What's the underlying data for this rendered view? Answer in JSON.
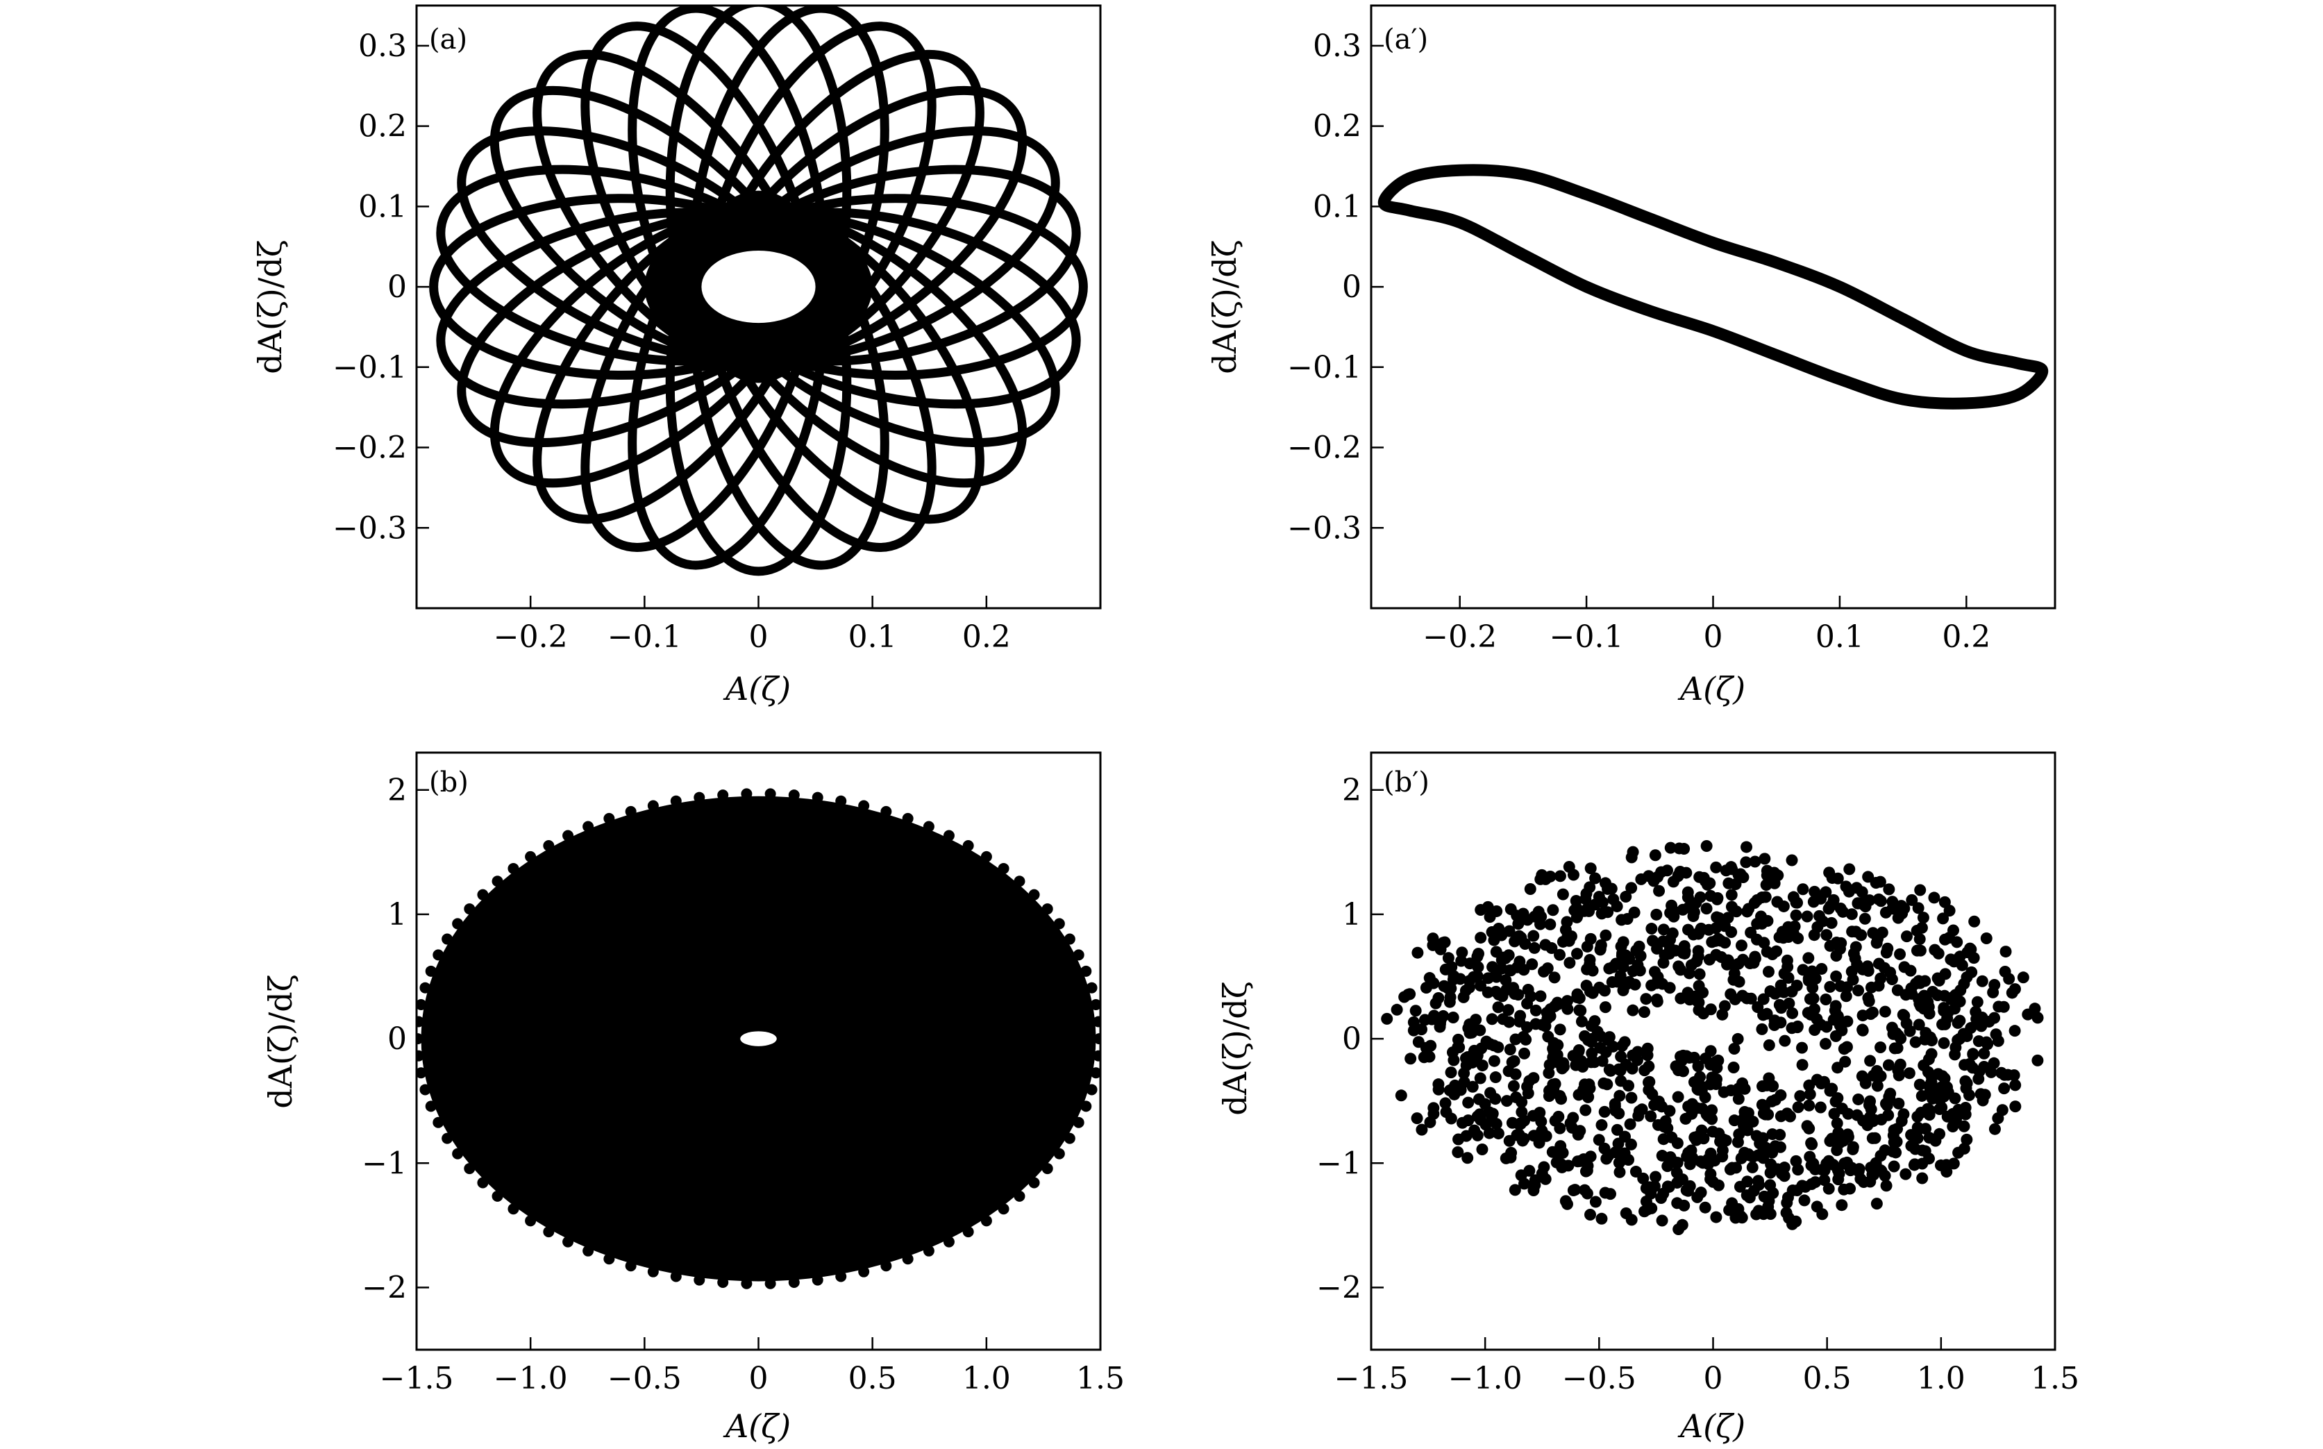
{
  "figure": {
    "background": "#ffffff",
    "mark_color": "#000000"
  },
  "chart_data": [
    {
      "panel": "(a)",
      "type": "scatter",
      "xlabel": "A(ζ)",
      "ylabel": "dA(ζ)/dζ",
      "xlim": [
        -0.3,
        0.3
      ],
      "ylim": [
        -0.4,
        0.35
      ],
      "xticks": [
        -0.2,
        -0.1,
        0,
        0.1,
        0.2
      ],
      "xtick_labels": [
        "−0.2",
        "−0.1",
        "0",
        "0.1",
        "0.2"
      ],
      "yticks": [
        -0.3,
        -0.2,
        -0.1,
        0,
        0.1,
        0.2,
        0.3
      ],
      "ytick_labels": [
        "−0.3",
        "−0.2",
        "−0.1",
        "0",
        "0.1",
        "0.2",
        "0.3"
      ],
      "pattern": {
        "kind": "rosette",
        "count": 28,
        "semi_major": 0.165,
        "semi_minor": 0.11,
        "center_radius": 0.12,
        "hole": [
          0.05,
          0.045
        ],
        "outer": [
          0.285,
          0.3
        ]
      },
      "series": []
    },
    {
      "panel": "(a′)",
      "type": "scatter",
      "xlabel": "A(ζ)",
      "ylabel": "dA(ζ)/dζ",
      "xlim": [
        -0.27,
        0.27
      ],
      "ylim": [
        -0.4,
        0.35
      ],
      "xticks": [
        -0.2,
        -0.1,
        0,
        0.1,
        0.2
      ],
      "xtick_labels": [
        "−0.2",
        "−0.1",
        "0",
        "0.1",
        "0.2"
      ],
      "yticks": [
        -0.3,
        -0.2,
        -0.1,
        0,
        0.1,
        0.2,
        0.3
      ],
      "ytick_labels": [
        "−0.3",
        "−0.2",
        "−0.1",
        "0",
        "0.1",
        "0.2",
        "0.3"
      ],
      "series": [
        {
          "kind": "closed-loop",
          "x": [
            -0.26,
            -0.24,
            -0.2,
            -0.15,
            -0.1,
            -0.05,
            0,
            0.05,
            0.1,
            0.15,
            0.2,
            0.24,
            0.26,
            0.24,
            0.2,
            0.15,
            0.1,
            0.05,
            0,
            -0.05,
            -0.1,
            -0.15,
            -0.2,
            -0.24
          ],
          "y": [
            0.105,
            0.135,
            0.145,
            0.14,
            0.115,
            0.085,
            0.055,
            0.03,
            0.0,
            -0.04,
            -0.08,
            -0.095,
            -0.105,
            -0.135,
            -0.145,
            -0.14,
            -0.115,
            -0.085,
            -0.055,
            -0.03,
            0.0,
            0.04,
            0.08,
            0.095
          ]
        }
      ]
    },
    {
      "panel": "(b)",
      "type": "scatter",
      "xlabel": "A(ζ)",
      "ylabel": "dA(ζ)/dζ",
      "xlim": [
        -1.5,
        1.5
      ],
      "ylim": [
        -2.5,
        2.3
      ],
      "xticks": [
        -1.5,
        -1.0,
        -0.5,
        0,
        0.5,
        1.0,
        1.5
      ],
      "xtick_labels": [
        "−1.5",
        "−1.0",
        "−0.5",
        "0",
        "0.5",
        "1.0",
        "1.5"
      ],
      "yticks": [
        -2,
        -1,
        0,
        1,
        2
      ],
      "ytick_labels": [
        "−2",
        "−1",
        "0",
        "1",
        "2"
      ],
      "pattern": {
        "kind": "filled-disk",
        "outer": [
          1.48,
          1.95
        ],
        "hole": [
          0.08,
          0.06
        ]
      },
      "series": []
    },
    {
      "panel": "(b′)",
      "type": "scatter",
      "xlabel": "A(ζ)",
      "ylabel": "dA(ζ)/dζ",
      "xlim": [
        -1.5,
        1.5
      ],
      "ylim": [
        -2.5,
        2.3
      ],
      "xticks": [
        -1.5,
        -1.0,
        -0.5,
        0,
        0.5,
        1.0,
        1.5
      ],
      "xtick_labels": [
        "−1.5",
        "−1.0",
        "−0.5",
        "0",
        "0.5",
        "1.0",
        "1.5"
      ],
      "yticks": [
        -2,
        -1,
        0,
        1,
        2
      ],
      "ytick_labels": [
        "−2",
        "−1",
        "0",
        "1",
        "2"
      ],
      "pattern": {
        "kind": "random-cloud",
        "count": 1400,
        "outer": [
          1.45,
          1.55
        ],
        "inner": [
          0.5,
          0.15
        ],
        "seed": 7
      },
      "series": []
    }
  ]
}
